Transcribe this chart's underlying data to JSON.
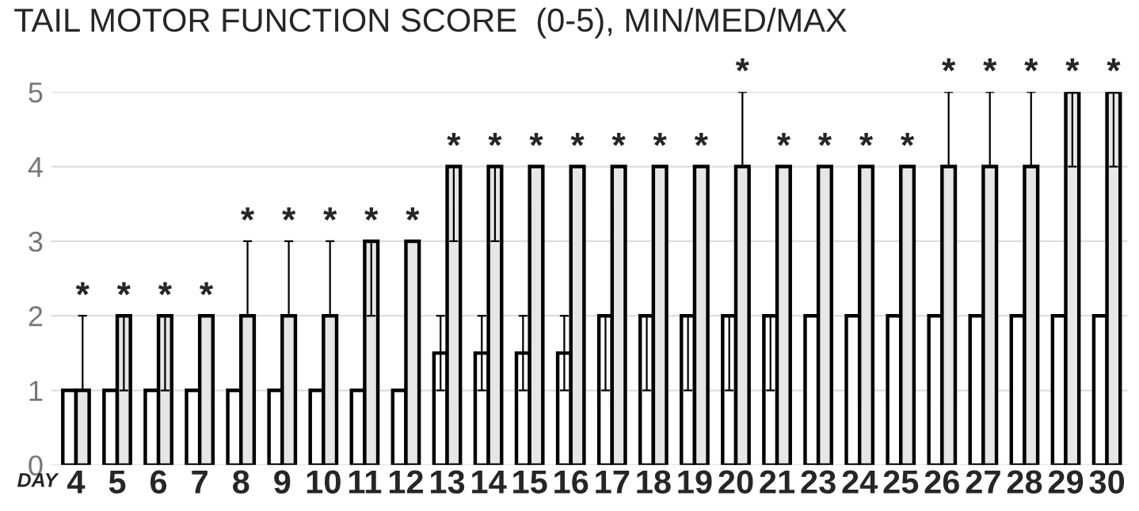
{
  "chart_data": {
    "type": "bar",
    "title": "TAIL MOTOR FUNCTION SCORE  (0-5), MIN/MED/MAX",
    "xlabel": "DAY",
    "categories": [
      "4",
      "5",
      "6",
      "7",
      "8",
      "9",
      "10",
      "11",
      "12",
      "13",
      "14",
      "15",
      "16",
      "17",
      "18",
      "19",
      "20",
      "21",
      "23",
      "24",
      "25",
      "26",
      "27",
      "28",
      "29",
      "30"
    ],
    "series": [
      {
        "color": "#ffffff",
        "values": [
          1,
          1,
          1,
          1,
          1,
          1,
          1,
          1,
          1,
          1.5,
          1.5,
          1.5,
          1.5,
          2,
          2,
          2,
          2,
          2,
          2,
          2,
          2,
          2,
          2,
          2,
          2,
          2
        ],
        "errors": [
          null,
          null,
          null,
          null,
          null,
          null,
          null,
          null,
          null,
          [
            1,
            2
          ],
          [
            1,
            2
          ],
          [
            1,
            2
          ],
          [
            1,
            2
          ],
          [
            1,
            2
          ],
          [
            1,
            2
          ],
          [
            1,
            2
          ],
          [
            1,
            2
          ],
          [
            1,
            2
          ],
          null,
          null,
          null,
          null,
          null,
          null,
          null,
          null
        ]
      },
      {
        "color": "#e6e6e6",
        "values": [
          1,
          2,
          2,
          2,
          2,
          2,
          2,
          3,
          3,
          4,
          4,
          4,
          4,
          4,
          4,
          4,
          4,
          4,
          4,
          4,
          4,
          4,
          4,
          4,
          5,
          5
        ],
        "errors": [
          [
            1,
            2
          ],
          [
            1,
            2
          ],
          [
            1,
            2
          ],
          null,
          [
            2,
            3
          ],
          [
            2,
            3
          ],
          [
            2,
            3
          ],
          [
            2,
            3
          ],
          null,
          [
            3,
            4
          ],
          [
            3,
            4
          ],
          null,
          null,
          null,
          null,
          null,
          [
            4,
            5
          ],
          null,
          null,
          null,
          null,
          [
            4,
            5
          ],
          [
            4,
            5
          ],
          [
            4,
            5
          ],
          [
            4,
            5
          ],
          [
            4,
            5
          ]
        ]
      }
    ],
    "annotations": [
      {
        "text": "*",
        "x": "4",
        "y": 2
      },
      {
        "text": "*",
        "x": "5",
        "y": 2
      },
      {
        "text": "*",
        "x": "6",
        "y": 2
      },
      {
        "text": "*",
        "x": "7",
        "y": 2
      },
      {
        "text": "*",
        "x": "8",
        "y": 3
      },
      {
        "text": "*",
        "x": "9",
        "y": 3
      },
      {
        "text": "*",
        "x": "10",
        "y": 3
      },
      {
        "text": "*",
        "x": "11",
        "y": 3
      },
      {
        "text": "*",
        "x": "12",
        "y": 3
      },
      {
        "text": "*",
        "x": "13",
        "y": 4
      },
      {
        "text": "*",
        "x": "14",
        "y": 4
      },
      {
        "text": "*",
        "x": "15",
        "y": 4
      },
      {
        "text": "*",
        "x": "16",
        "y": 4
      },
      {
        "text": "*",
        "x": "17",
        "y": 4
      },
      {
        "text": "*",
        "x": "18",
        "y": 4
      },
      {
        "text": "*",
        "x": "19",
        "y": 4
      },
      {
        "text": "*",
        "x": "20",
        "y": 5
      },
      {
        "text": "*",
        "x": "21",
        "y": 4
      },
      {
        "text": "*",
        "x": "23",
        "y": 4
      },
      {
        "text": "*",
        "x": "24",
        "y": 4
      },
      {
        "text": "*",
        "x": "25",
        "y": 4
      },
      {
        "text": "*",
        "x": "26",
        "y": 5
      },
      {
        "text": "*",
        "x": "27",
        "y": 5
      },
      {
        "text": "*",
        "x": "28",
        "y": 5
      },
      {
        "text": "*",
        "x": "29",
        "y": 5
      },
      {
        "text": "*",
        "x": "30",
        "y": 5
      }
    ],
    "ylim": [
      0,
      5
    ],
    "yticks": [
      0,
      1,
      2,
      3,
      4,
      5
    ],
    "grid": "y"
  }
}
